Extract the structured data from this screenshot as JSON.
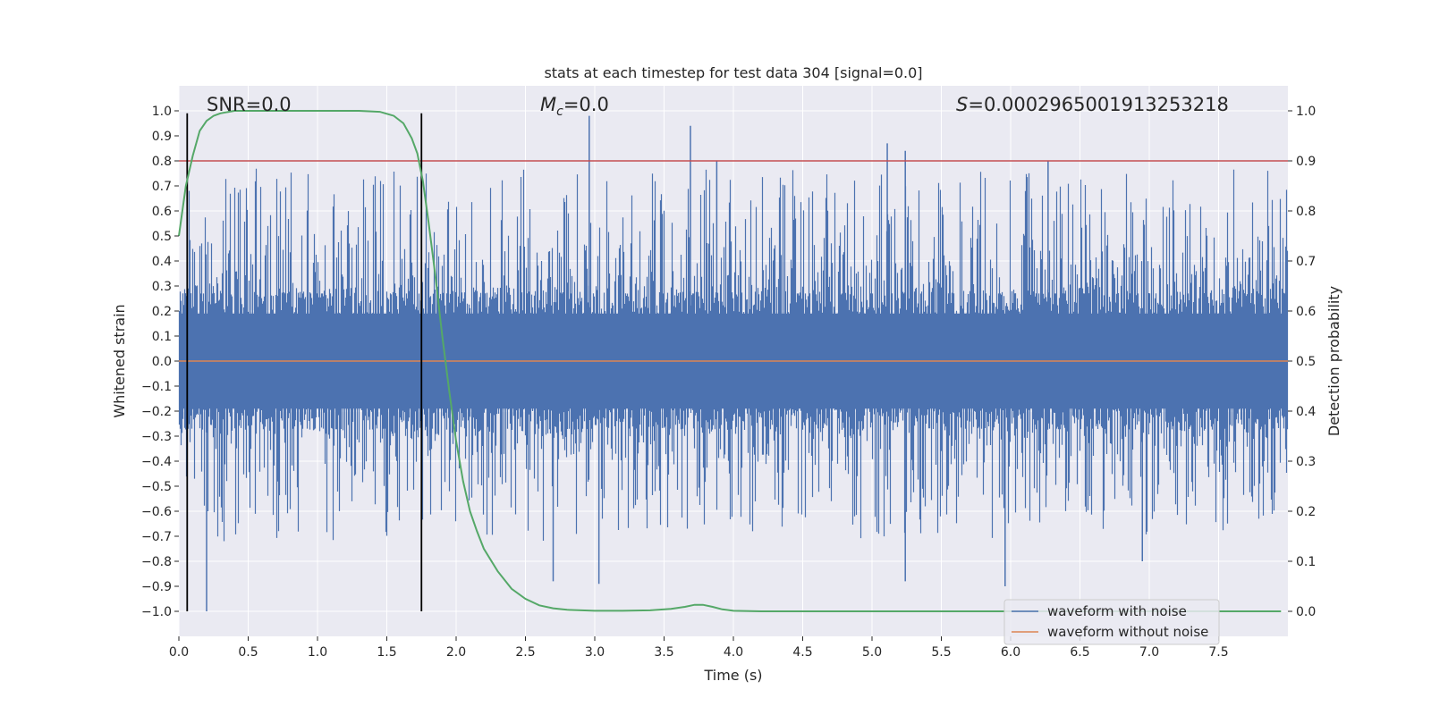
{
  "chart_data": {
    "type": "line",
    "title": "stats at each timestep for test data 304 [signal=0.0]",
    "xlabel": "Time (s)",
    "ylabel_left": "Whitened strain",
    "ylabel_right": "Detection probability",
    "xlim": [
      0.0,
      8.0
    ],
    "ylim_left": [
      -1.1,
      1.1
    ],
    "ylim_right": [
      -0.05,
      1.05
    ],
    "x_ticks": [
      0.0,
      0.5,
      1.0,
      1.5,
      2.0,
      2.5,
      3.0,
      3.5,
      4.0,
      4.5,
      5.0,
      5.5,
      6.0,
      6.5,
      7.0,
      7.5
    ],
    "x_tick_labels": [
      "0.0",
      "0.5",
      "1.0",
      "1.5",
      "2.0",
      "2.5",
      "3.0",
      "3.5",
      "4.0",
      "4.5",
      "5.0",
      "5.5",
      "6.0",
      "6.5",
      "7.0",
      "7.5"
    ],
    "y_left_ticks": [
      1.0,
      0.9,
      0.8,
      0.7,
      0.6,
      0.5,
      0.4,
      0.3,
      0.2,
      0.1,
      0.0,
      -0.1,
      -0.2,
      -0.3,
      -0.4,
      -0.5,
      -0.6,
      -0.7,
      -0.8,
      -0.9,
      -1.0
    ],
    "y_left_tick_labels": [
      "1.0",
      "0.9",
      "0.8",
      "0.7",
      "0.6",
      "0.5",
      "0.4",
      "0.3",
      "0.2",
      "0.1",
      "0.0",
      "−0.1",
      "−0.2",
      "−0.3",
      "−0.4",
      "−0.5",
      "−0.6",
      "−0.7",
      "−0.8",
      "−0.9",
      "−1.0"
    ],
    "y_right_ticks": [
      1.0,
      0.9,
      0.8,
      0.7,
      0.6,
      0.5,
      0.4,
      0.3,
      0.2,
      0.1,
      0.0
    ],
    "y_right_tick_labels": [
      "1.0",
      "0.9",
      "0.8",
      "0.7",
      "0.6",
      "0.5",
      "0.4",
      "0.3",
      "0.2",
      "0.1",
      "0.0"
    ],
    "annotations": {
      "snr": "SNR=0.0",
      "mc_symbol": "M",
      "mc_subscript": "c",
      "mc_value": "=0.0",
      "s_symbol": "S",
      "s_value": "=0.0002965001913253218"
    },
    "threshold_right": 0.9,
    "vlines_x": [
      0.06,
      1.75
    ],
    "noise_waveform": {
      "name": "waveform with noise",
      "color": "#4c72b0",
      "x_range": [
        0.0,
        8.0
      ],
      "amplitude_core": 0.27,
      "notable_peaks": [
        {
          "x": 0.2,
          "y": -1.0
        },
        {
          "x": 2.96,
          "y": 0.98
        },
        {
          "x": 3.69,
          "y": 0.94
        },
        {
          "x": 3.88,
          "y": 0.8
        },
        {
          "x": 5.11,
          "y": 0.87
        },
        {
          "x": 5.24,
          "y": 0.84
        },
        {
          "x": 5.24,
          "y": -0.88
        },
        {
          "x": 5.96,
          "y": -0.9
        },
        {
          "x": 6.27,
          "y": 0.8
        },
        {
          "x": 2.7,
          "y": -0.88
        },
        {
          "x": 3.03,
          "y": -0.89
        },
        {
          "x": 6.95,
          "y": -0.8
        }
      ]
    },
    "clean_waveform": {
      "name": "waveform without noise",
      "color": "#dd8452",
      "value": 0.0
    },
    "detection_probability": {
      "color": "#55a868",
      "x": [
        0.0,
        0.05,
        0.1,
        0.15,
        0.2,
        0.25,
        0.3,
        0.4,
        0.5,
        0.7,
        1.0,
        1.3,
        1.45,
        1.55,
        1.62,
        1.68,
        1.72,
        1.76,
        1.8,
        1.85,
        1.9,
        1.95,
        2.0,
        2.05,
        2.1,
        2.15,
        2.2,
        2.3,
        2.4,
        2.5,
        2.6,
        2.7,
        2.8,
        3.0,
        3.2,
        3.4,
        3.55,
        3.65,
        3.72,
        3.78,
        3.85,
        3.92,
        4.0,
        4.2,
        4.5,
        5.0,
        6.0,
        7.0,
        7.95
      ],
      "values": [
        0.75,
        0.85,
        0.91,
        0.96,
        0.98,
        0.99,
        0.995,
        1.0,
        1.0,
        1.0,
        1.0,
        1.0,
        0.998,
        0.99,
        0.975,
        0.945,
        0.915,
        0.86,
        0.78,
        0.67,
        0.55,
        0.44,
        0.34,
        0.26,
        0.2,
        0.16,
        0.125,
        0.08,
        0.045,
        0.025,
        0.012,
        0.006,
        0.003,
        0.001,
        0.001,
        0.002,
        0.005,
        0.009,
        0.013,
        0.013,
        0.009,
        0.004,
        0.001,
        0.0,
        0.0,
        0.0,
        0.0,
        0.0,
        0.0
      ]
    },
    "legend": {
      "placement": "lower-right",
      "entries": [
        {
          "label": "waveform with noise",
          "color": "#4c72b0"
        },
        {
          "label": "waveform without noise",
          "color": "#dd8452"
        }
      ]
    },
    "colors": {
      "axes_bg": "#eaeaf2",
      "grid": "#ffffff",
      "threshold": "#c44e52",
      "vline": "#000000"
    }
  }
}
